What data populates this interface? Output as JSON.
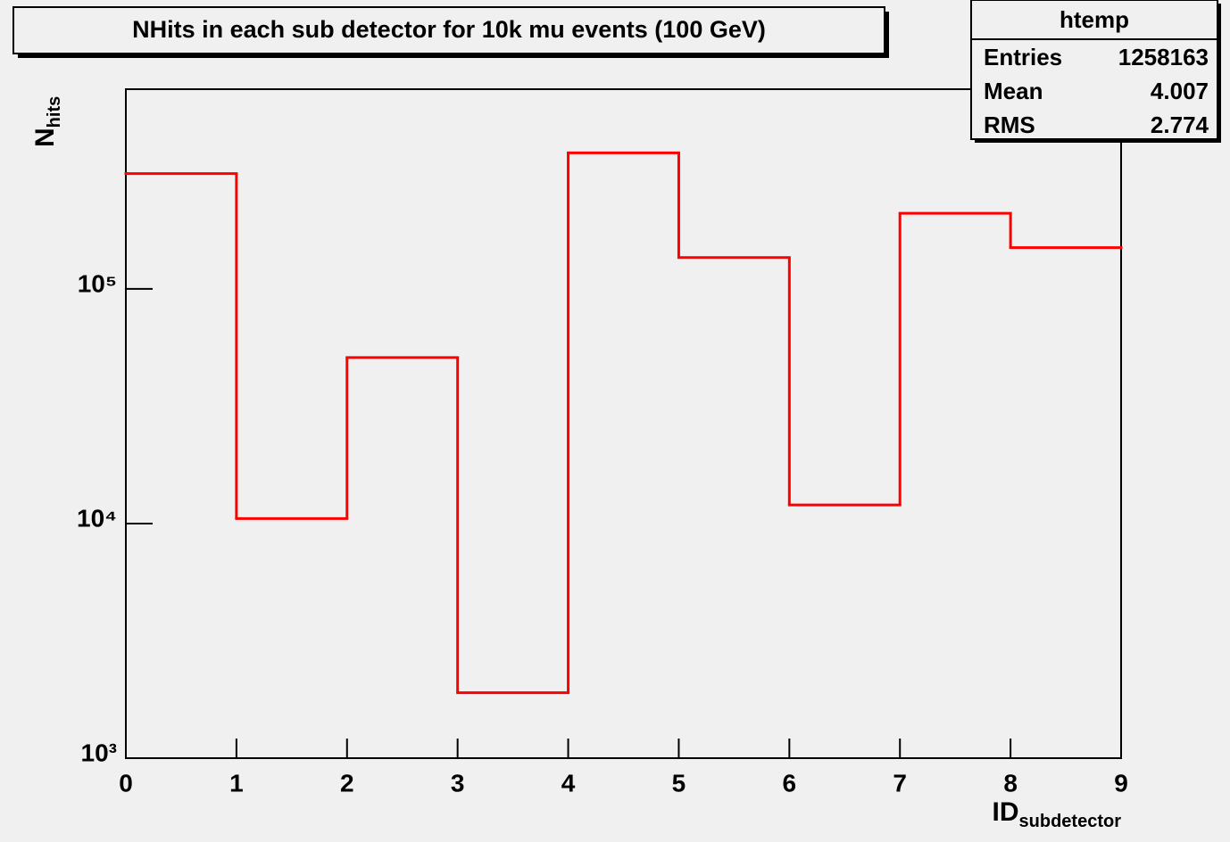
{
  "chart_data": {
    "type": "histogram",
    "title": "NHits in each sub detector for 10k mu events (100 GeV)",
    "xlabel": {
      "main": "ID",
      "sub": "subdetector"
    },
    "ylabel": {
      "main": "N",
      "sub": "hits"
    },
    "bins": [
      0,
      1,
      2,
      3,
      4,
      5,
      6,
      7,
      8,
      9
    ],
    "values": [
      310000,
      10500,
      51000,
      1900,
      380000,
      136000,
      12000,
      210000,
      150000
    ],
    "color": "#ff0000",
    "xlim": [
      0,
      9
    ],
    "xticks": [
      0,
      1,
      2,
      3,
      4,
      5,
      6,
      7,
      8,
      9
    ],
    "ylim": [
      1000,
      710000
    ],
    "log_y": true,
    "yticks": [
      {
        "value": 1000,
        "label": "10³"
      },
      {
        "value": 10000,
        "label": "10⁴"
      },
      {
        "value": 100000,
        "label": "10⁵"
      }
    ],
    "stats": {
      "title": "htemp",
      "rows": [
        [
          "Entries",
          1258163
        ],
        [
          "Mean",
          4.007
        ],
        [
          "RMS",
          2.774
        ]
      ]
    }
  }
}
